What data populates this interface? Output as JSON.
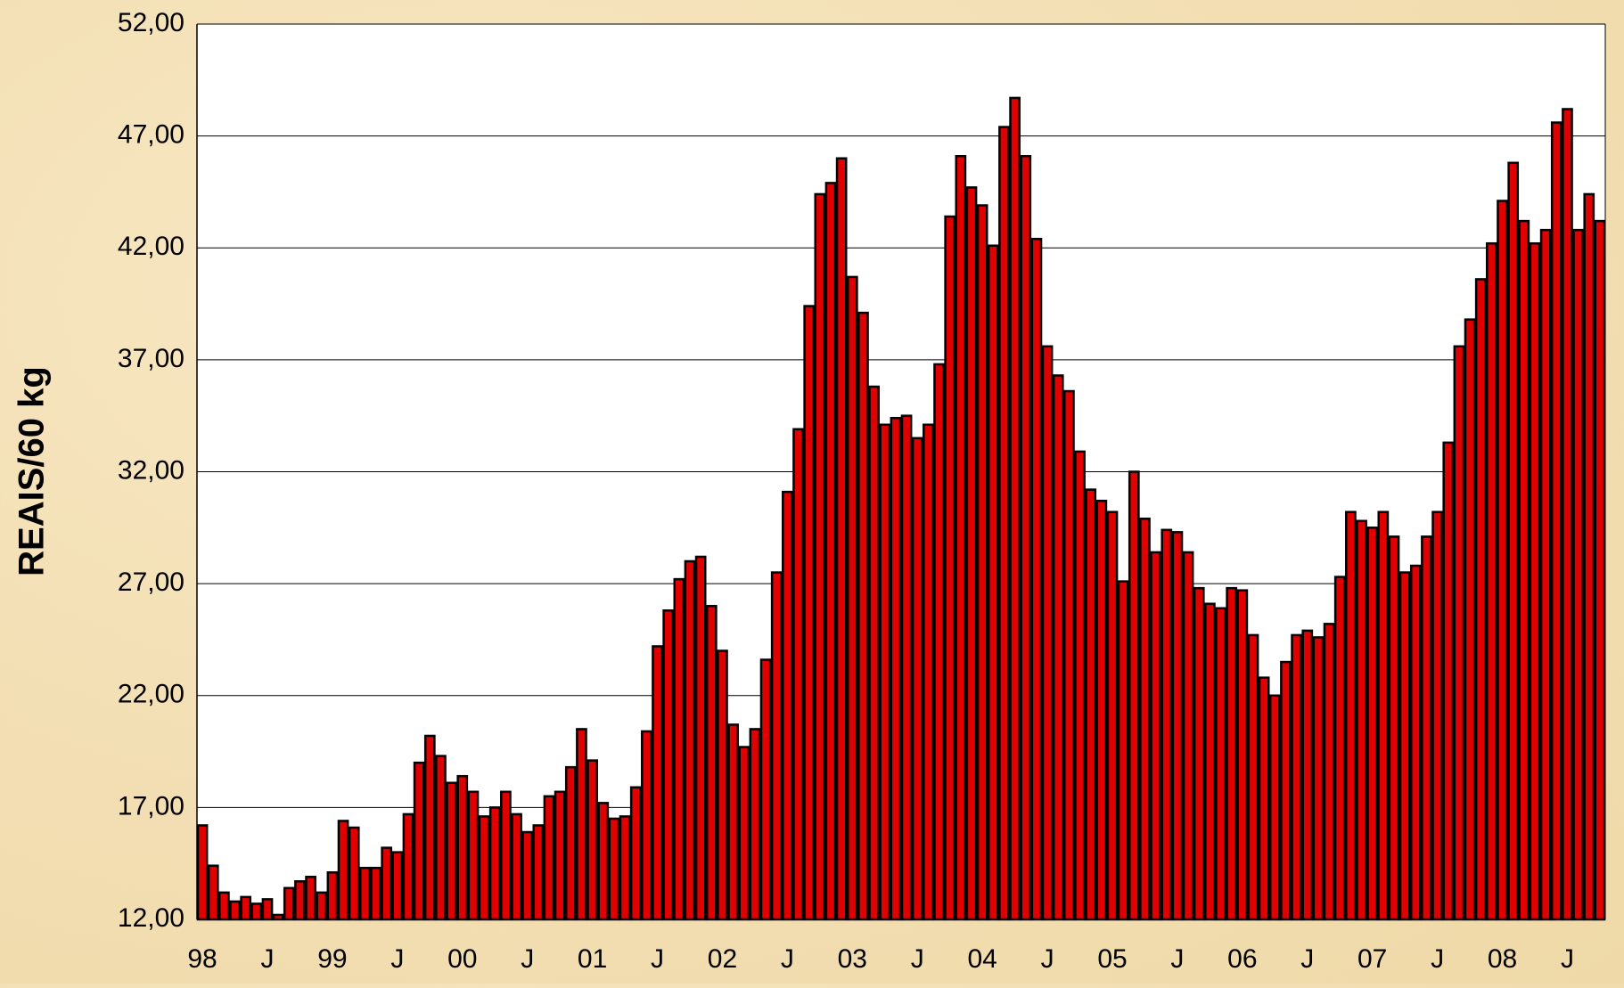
{
  "chart_data": {
    "type": "bar",
    "y_label": "REAIS/60 kg",
    "color": "#e00000",
    "edge_color": "#000000",
    "grid": true,
    "ylim": [
      12,
      52
    ],
    "yticks": [
      {
        "value": 12,
        "label": "12,00"
      },
      {
        "value": 17,
        "label": "17,00"
      },
      {
        "value": 22,
        "label": "22,00"
      },
      {
        "value": 27,
        "label": "27,00"
      },
      {
        "value": 32,
        "label": "32,00"
      },
      {
        "value": 37,
        "label": "37,00"
      },
      {
        "value": 42,
        "label": "42,00"
      },
      {
        "value": 47,
        "label": "47,00"
      },
      {
        "value": 52,
        "label": "52,00"
      }
    ],
    "categories": [
      "98",
      null,
      null,
      null,
      null,
      null,
      "J",
      null,
      null,
      null,
      null,
      null,
      "99",
      null,
      null,
      null,
      null,
      null,
      "J",
      null,
      null,
      null,
      null,
      null,
      "00",
      null,
      null,
      null,
      null,
      null,
      "J",
      null,
      null,
      null,
      null,
      null,
      "01",
      null,
      null,
      null,
      null,
      null,
      "J",
      null,
      null,
      null,
      null,
      null,
      "02",
      null,
      null,
      null,
      null,
      null,
      "J",
      null,
      null,
      null,
      null,
      null,
      "03",
      null,
      null,
      null,
      null,
      null,
      "J",
      null,
      null,
      null,
      null,
      null,
      "04",
      null,
      null,
      null,
      null,
      null,
      "J",
      null,
      null,
      null,
      null,
      null,
      "05",
      null,
      null,
      null,
      null,
      null,
      "J",
      null,
      null,
      null,
      null,
      null,
      "06",
      null,
      null,
      null,
      null,
      null,
      "J",
      null,
      null,
      null,
      null,
      null,
      "07",
      null,
      null,
      null,
      null,
      null,
      "J",
      null,
      null,
      null,
      null,
      null,
      "08",
      null,
      null,
      null,
      null,
      null,
      "J",
      null,
      null,
      null
    ],
    "values": [
      16.2,
      14.4,
      13.2,
      12.8,
      13.0,
      12.7,
      12.9,
      12.2,
      13.4,
      13.7,
      13.9,
      13.2,
      14.1,
      16.4,
      16.1,
      14.3,
      14.3,
      15.2,
      15.0,
      16.7,
      19.0,
      20.2,
      19.3,
      18.1,
      18.4,
      17.7,
      16.6,
      17.0,
      17.7,
      16.7,
      15.9,
      16.2,
      17.5,
      17.7,
      18.8,
      20.5,
      19.1,
      17.2,
      16.5,
      16.6,
      17.9,
      20.4,
      24.2,
      25.8,
      27.2,
      28.0,
      28.2,
      26.0,
      24.0,
      20.7,
      19.7,
      20.5,
      23.6,
      27.5,
      31.1,
      33.9,
      39.4,
      44.4,
      44.9,
      46.0,
      40.7,
      39.1,
      35.8,
      34.1,
      34.4,
      34.5,
      33.5,
      34.1,
      36.8,
      43.4,
      46.1,
      44.7,
      43.9,
      42.1,
      47.4,
      48.7,
      46.1,
      42.4,
      37.6,
      36.3,
      35.6,
      32.9,
      31.2,
      30.7,
      30.2,
      27.1,
      32.0,
      29.9,
      28.4,
      29.4,
      29.3,
      28.4,
      26.8,
      26.1,
      25.9,
      26.8,
      26.7,
      24.7,
      22.8,
      22.0,
      23.5,
      24.7,
      24.9,
      24.6,
      25.2,
      27.3,
      30.2,
      29.8,
      29.5,
      30.2,
      29.1,
      27.5,
      27.8,
      29.1,
      30.2,
      33.3,
      37.6,
      38.8,
      40.6,
      42.2,
      44.1,
      45.8,
      43.2,
      42.2,
      42.8,
      47.6,
      48.2,
      42.8,
      44.4,
      43.2
    ]
  }
}
